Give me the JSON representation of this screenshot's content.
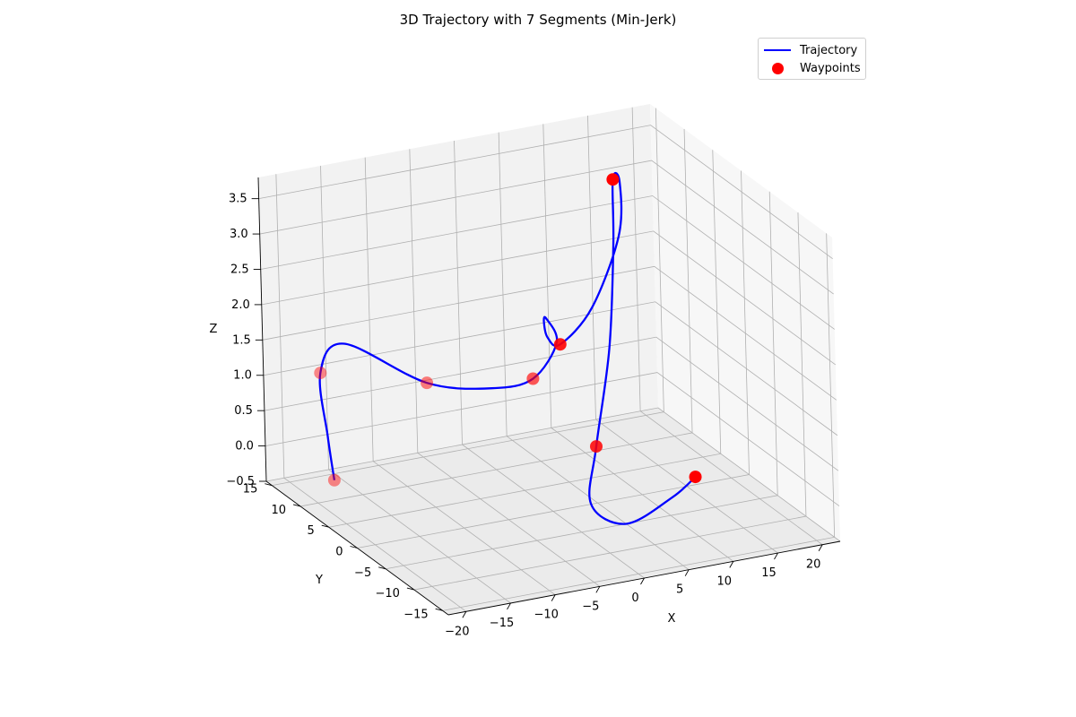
{
  "chart_data": {
    "type": "line",
    "title": "3D Trajectory with 7 Segments (Min-Jerk)",
    "xlabel": "X",
    "ylabel": "Y",
    "zlabel": "Z",
    "xlim": [
      -22,
      22
    ],
    "ylim": [
      -16,
      16
    ],
    "zlim": [
      -0.5,
      3.8
    ],
    "x_ticks": [
      -20,
      -15,
      -10,
      -5,
      0,
      5,
      10,
      15,
      20
    ],
    "x_tick_labels": [
      "−20",
      "−15",
      "−10",
      "−5",
      "0",
      "5",
      "10",
      "15",
      "20"
    ],
    "y_ticks": [
      -15,
      -10,
      -5,
      0,
      5,
      10,
      15
    ],
    "y_tick_labels": [
      "−15",
      "−10",
      "−5",
      "0",
      "5",
      "10",
      "15"
    ],
    "z_ticks": [
      -0.5,
      0.0,
      0.5,
      1.0,
      1.5,
      2.0,
      2.5,
      3.0,
      3.5
    ],
    "z_tick_labels": [
      "−0.5",
      "0.0",
      "0.5",
      "1.0",
      "1.5",
      "2.0",
      "2.5",
      "3.0",
      "3.5"
    ],
    "grid": true,
    "legend_position": "upper right",
    "series": [
      {
        "name": "Trajectory",
        "color": "#0000ff",
        "type": "line",
        "points": [
          [
            -20,
            7,
            0.0
          ],
          [
            -20.3,
            7.5,
            0.6
          ],
          [
            -20,
            9,
            1.4
          ],
          [
            -16,
            11,
            1.6
          ],
          [
            -10,
            6,
            1.2
          ],
          [
            -4,
            4,
            1.1
          ],
          [
            0,
            3,
            1.2
          ],
          [
            4,
            5,
            1.5
          ],
          [
            6,
            10,
            1.5
          ],
          [
            7,
            12,
            1.3
          ],
          [
            8,
            13,
            1.0
          ],
          [
            10,
            14,
            0.8
          ],
          [
            13,
            13,
            1.3
          ],
          [
            15,
            11,
            2.4
          ],
          [
            14,
            9,
            3.3
          ],
          [
            12,
            7,
            3.5
          ],
          [
            10,
            4,
            2.8
          ],
          [
            8,
            2,
            1.5
          ],
          [
            5,
            0,
            0.3
          ],
          [
            3,
            -2,
            -0.35
          ],
          [
            5,
            -5,
            -0.5
          ],
          [
            9,
            -7,
            -0.1
          ],
          [
            11,
            -8,
            0.2
          ]
        ]
      },
      {
        "name": "Waypoints",
        "color": "#ff0000",
        "type": "scatter",
        "points": [
          [
            -20,
            7,
            0.0
          ],
          [
            -20,
            9,
            1.4
          ],
          [
            -10,
            6,
            1.2
          ],
          [
            0,
            3,
            1.2
          ],
          [
            10,
            14,
            0.8
          ],
          [
            12,
            7,
            3.5
          ],
          [
            5,
            0,
            0.3
          ],
          [
            11,
            -8,
            0.2
          ]
        ]
      }
    ]
  }
}
